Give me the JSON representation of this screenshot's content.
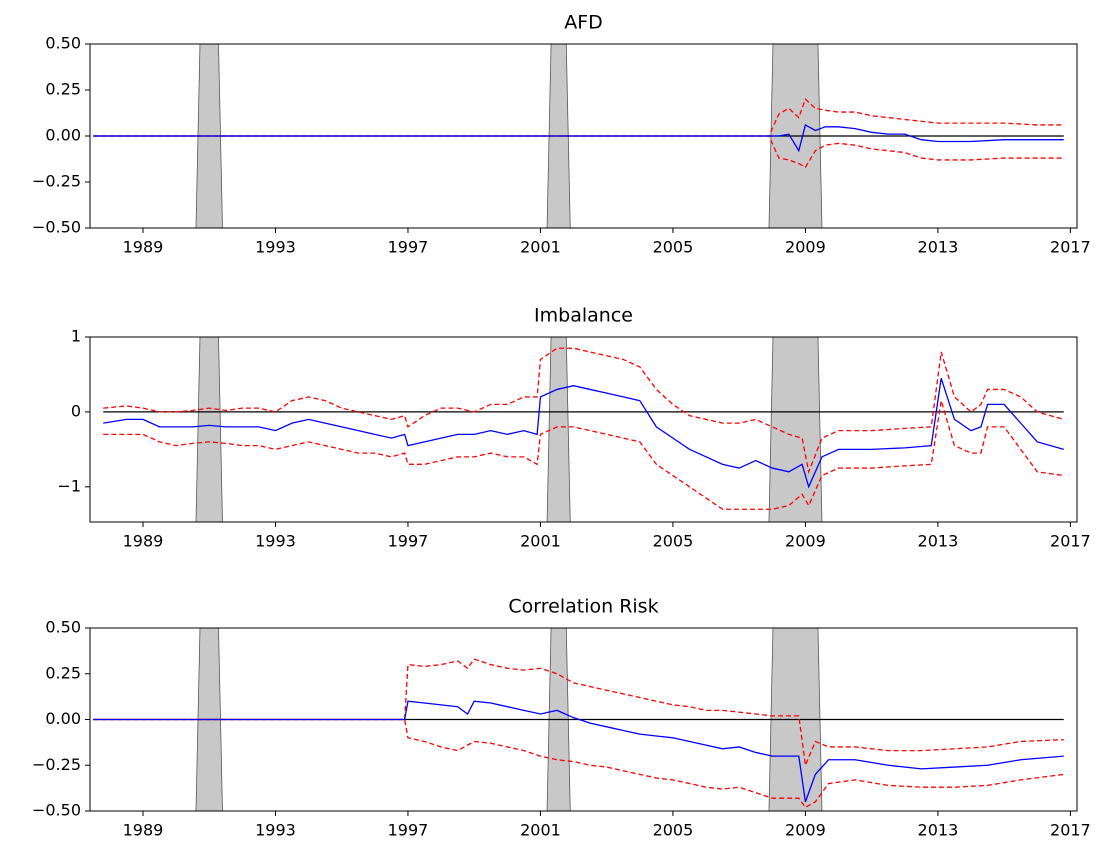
{
  "chart_data": [
    {
      "type": "line",
      "title": "AFD",
      "x": [
        1987.5,
        2007.9,
        2008.2,
        2008.5,
        2008.8,
        2009.0,
        2009.3,
        2009.6,
        2010.0,
        2010.5,
        2011,
        2011.5,
        2012,
        2012.5,
        2013,
        2014,
        2015,
        2016,
        2016.8
      ],
      "series": [
        {
          "color": "#0000ff",
          "style": "solid",
          "values": [
            0,
            0,
            0,
            0.01,
            -0.08,
            0.06,
            0.03,
            0.05,
            0.05,
            0.04,
            0.02,
            0.01,
            0.01,
            -0.02,
            -0.03,
            -0.03,
            -0.02,
            -0.02,
            -0.02
          ]
        },
        {
          "color": "#ff0000",
          "style": "dashed",
          "values": [
            0,
            0,
            0.12,
            0.15,
            0.1,
            0.2,
            0.15,
            0.14,
            0.13,
            0.13,
            0.11,
            0.1,
            0.09,
            0.08,
            0.07,
            0.07,
            0.07,
            0.06,
            0.06
          ]
        },
        {
          "color": "#ff0000",
          "style": "dashed",
          "values": [
            0,
            0,
            -0.12,
            -0.13,
            -0.15,
            -0.17,
            -0.08,
            -0.05,
            -0.04,
            -0.05,
            -0.07,
            -0.08,
            -0.09,
            -0.12,
            -0.13,
            -0.13,
            -0.12,
            -0.12,
            -0.12
          ]
        }
      ],
      "hline": 0,
      "shaded_regions": [
        [
          1990.6,
          1991.4
        ],
        [
          2001.2,
          2001.9
        ],
        [
          2007.9,
          2009.5
        ]
      ],
      "shade_color": "#c8c8c8",
      "xlim": [
        1987.4,
        2017.2
      ],
      "xticks": [
        1989,
        1993,
        1997,
        2001,
        2005,
        2009,
        2013,
        2017
      ],
      "ylim": [
        -0.5,
        0.5
      ],
      "yticks": [
        {
          "value": -0.5,
          "label": "−0.50"
        },
        {
          "value": -0.25,
          "label": "−0.25"
        },
        {
          "value": 0,
          "label": "0.00"
        },
        {
          "value": 0.25,
          "label": "0.25"
        },
        {
          "value": 0.5,
          "label": "0.50"
        }
      ]
    },
    {
      "type": "line",
      "title": "Imbalance",
      "x": [
        1987.8,
        1988.5,
        1989,
        1989.5,
        1990,
        1990.5,
        1991,
        1991.5,
        1992,
        1992.5,
        1993,
        1993.5,
        1994,
        1994.5,
        1995,
        1995.5,
        1996,
        1996.5,
        1996.9,
        1997.0,
        1997.5,
        1998,
        1998.5,
        1999,
        1999.5,
        2000,
        2000.5,
        2000.9,
        2001.0,
        2001.5,
        2002,
        2002.5,
        2003,
        2003.5,
        2004,
        2004.5,
        2005,
        2005.5,
        2006,
        2006.5,
        2007,
        2007.5,
        2008,
        2008.5,
        2008.9,
        2009.1,
        2009.5,
        2010,
        2011,
        2012,
        2012.8,
        2013.1,
        2013.5,
        2014,
        2014.3,
        2014.5,
        2015,
        2015.5,
        2016,
        2016.8
      ],
      "series": [
        {
          "color": "#0000ff",
          "style": "solid",
          "values": [
            -0.15,
            -0.1,
            -0.1,
            -0.2,
            -0.2,
            -0.2,
            -0.18,
            -0.2,
            -0.2,
            -0.2,
            -0.25,
            -0.15,
            -0.1,
            -0.15,
            -0.2,
            -0.25,
            -0.3,
            -0.35,
            -0.3,
            -0.45,
            -0.4,
            -0.35,
            -0.3,
            -0.3,
            -0.25,
            -0.3,
            -0.25,
            -0.3,
            0.2,
            0.3,
            0.35,
            0.3,
            0.25,
            0.2,
            0.15,
            -0.2,
            -0.35,
            -0.5,
            -0.6,
            -0.7,
            -0.75,
            -0.65,
            -0.75,
            -0.8,
            -0.7,
            -1.0,
            -0.6,
            -0.5,
            -0.5,
            -0.48,
            -0.45,
            0.45,
            -0.1,
            -0.25,
            -0.2,
            0.1,
            0.1,
            -0.15,
            -0.4,
            -0.5
          ]
        },
        {
          "color": "#ff0000",
          "style": "dashed",
          "values": [
            0.05,
            0.08,
            0.05,
            0.0,
            0.0,
            0.02,
            0.05,
            0.02,
            0.05,
            0.05,
            0.0,
            0.15,
            0.2,
            0.15,
            0.05,
            0.0,
            -0.05,
            -0.1,
            -0.05,
            -0.2,
            -0.05,
            0.05,
            0.05,
            0.0,
            0.1,
            0.1,
            0.2,
            0.2,
            0.7,
            0.85,
            0.85,
            0.8,
            0.75,
            0.7,
            0.6,
            0.3,
            0.1,
            -0.05,
            -0.1,
            -0.15,
            -0.15,
            -0.1,
            -0.2,
            -0.3,
            -0.35,
            -0.8,
            -0.35,
            -0.25,
            -0.25,
            -0.22,
            -0.2,
            0.8,
            0.2,
            0.0,
            0.1,
            0.3,
            0.3,
            0.2,
            0.0,
            -0.1
          ]
        },
        {
          "color": "#ff0000",
          "style": "dashed",
          "values": [
            -0.3,
            -0.3,
            -0.3,
            -0.4,
            -0.45,
            -0.42,
            -0.4,
            -0.42,
            -0.45,
            -0.45,
            -0.5,
            -0.45,
            -0.4,
            -0.45,
            -0.5,
            -0.55,
            -0.55,
            -0.6,
            -0.55,
            -0.7,
            -0.7,
            -0.65,
            -0.6,
            -0.6,
            -0.55,
            -0.6,
            -0.6,
            -0.7,
            -0.3,
            -0.2,
            -0.2,
            -0.25,
            -0.3,
            -0.35,
            -0.4,
            -0.7,
            -0.85,
            -1.0,
            -1.15,
            -1.3,
            -1.3,
            -1.3,
            -1.3,
            -1.25,
            -1.1,
            -1.25,
            -0.85,
            -0.75,
            -0.75,
            -0.72,
            -0.7,
            0.15,
            -0.45,
            -0.55,
            -0.55,
            -0.2,
            -0.2,
            -0.5,
            -0.8,
            -0.85
          ]
        }
      ],
      "hline": 0,
      "shaded_regions": [
        [
          1990.6,
          1991.4
        ],
        [
          2001.2,
          2001.9
        ],
        [
          2007.9,
          2009.5
        ]
      ],
      "shade_color": "#c8c8c8",
      "xlim": [
        1987.4,
        2017.2
      ],
      "xticks": [
        1989,
        1993,
        1997,
        2001,
        2005,
        2009,
        2013,
        2017
      ],
      "ylim": [
        -1.47,
        1
      ],
      "yticks": [
        {
          "value": -1,
          "label": "−1"
        },
        0,
        1
      ]
    },
    {
      "type": "line",
      "title": "Correlation Risk",
      "x": [
        1987.5,
        1996.9,
        1997.0,
        1997.5,
        1998,
        1998.5,
        1998.8,
        1999,
        1999.5,
        2000,
        2000.5,
        2001,
        2001.5,
        2002,
        2002.5,
        2003,
        2003.5,
        2004,
        2004.5,
        2005,
        2005.5,
        2006,
        2006.5,
        2007,
        2007.5,
        2008,
        2008.5,
        2008.8,
        2009.0,
        2009.3,
        2009.7,
        2010.5,
        2011.5,
        2012.5,
        2013.5,
        2014.5,
        2015.5,
        2016.8
      ],
      "series": [
        {
          "color": "#0000ff",
          "style": "solid",
          "values": [
            0,
            0,
            0.1,
            0.09,
            0.08,
            0.07,
            0.03,
            0.1,
            0.09,
            0.07,
            0.05,
            0.03,
            0.05,
            0.01,
            -0.02,
            -0.04,
            -0.06,
            -0.08,
            -0.09,
            -0.1,
            -0.12,
            -0.14,
            -0.16,
            -0.15,
            -0.18,
            -0.2,
            -0.2,
            -0.2,
            -0.45,
            -0.3,
            -0.22,
            -0.22,
            -0.25,
            -0.27,
            -0.26,
            -0.25,
            -0.22,
            -0.2
          ]
        },
        {
          "color": "#ff0000",
          "style": "dashed",
          "values": [
            0,
            0,
            0.3,
            0.29,
            0.3,
            0.32,
            0.28,
            0.33,
            0.3,
            0.28,
            0.27,
            0.28,
            0.25,
            0.2,
            0.18,
            0.16,
            0.14,
            0.12,
            0.1,
            0.08,
            0.07,
            0.05,
            0.05,
            0.04,
            0.03,
            0.02,
            0.02,
            0.02,
            -0.25,
            -0.12,
            -0.15,
            -0.15,
            -0.17,
            -0.17,
            -0.16,
            -0.15,
            -0.12,
            -0.11
          ]
        },
        {
          "color": "#ff0000",
          "style": "dashed",
          "values": [
            0,
            0,
            -0.1,
            -0.12,
            -0.15,
            -0.17,
            -0.14,
            -0.12,
            -0.13,
            -0.15,
            -0.17,
            -0.2,
            -0.22,
            -0.23,
            -0.25,
            -0.26,
            -0.28,
            -0.3,
            -0.32,
            -0.33,
            -0.35,
            -0.37,
            -0.38,
            -0.37,
            -0.4,
            -0.43,
            -0.43,
            -0.43,
            -0.48,
            -0.45,
            -0.35,
            -0.33,
            -0.36,
            -0.37,
            -0.37,
            -0.36,
            -0.33,
            -0.3
          ]
        }
      ],
      "hline": 0,
      "shaded_regions": [
        [
          1990.6,
          1991.4
        ],
        [
          2001.2,
          2001.9
        ],
        [
          2007.9,
          2009.5
        ]
      ],
      "shade_color": "#c8c8c8",
      "xlim": [
        1987.4,
        2017.2
      ],
      "xticks": [
        1989,
        1993,
        1997,
        2001,
        2005,
        2009,
        2013,
        2017
      ],
      "ylim": [
        -0.5,
        0.5
      ],
      "yticks": [
        {
          "value": -0.5,
          "label": "−0.50"
        },
        {
          "value": -0.25,
          "label": "−0.25"
        },
        {
          "value": 0,
          "label": "0.00"
        },
        {
          "value": 0.25,
          "label": "0.25"
        },
        {
          "value": 0.5,
          "label": "0.50"
        }
      ]
    }
  ]
}
